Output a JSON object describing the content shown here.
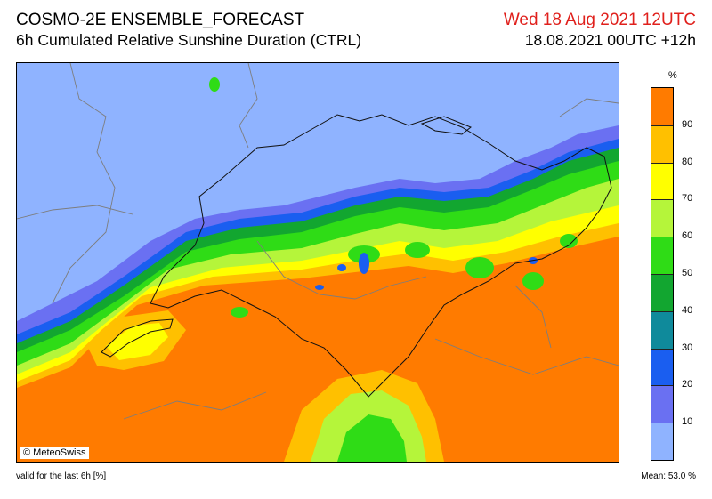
{
  "header": {
    "model": "COSMO-2E ENSEMBLE_FORECAST",
    "product": "6h Cumulated Relative Sunshine Duration (CTRL)",
    "valid_date": "Wed 18 Aug 2021 12UTC",
    "run": "18.08.2021 00UTC +12h"
  },
  "map": {
    "credit": "© MeteoSwiss"
  },
  "legend": {
    "unit": "%",
    "levels": [
      "10",
      "20",
      "30",
      "40",
      "50",
      "60",
      "70",
      "80",
      "90"
    ],
    "colors": [
      "#8fb3ff",
      "#6a70f2",
      "#1a5ef0",
      "#0f8a9b",
      "#12a630",
      "#2fdc16",
      "#b5f53a",
      "#ffff00",
      "#ffc000",
      "#ff7b00"
    ]
  },
  "footer": {
    "validity": "valid for the last 6h [%]",
    "mean": "Mean:  53.0 %"
  }
}
